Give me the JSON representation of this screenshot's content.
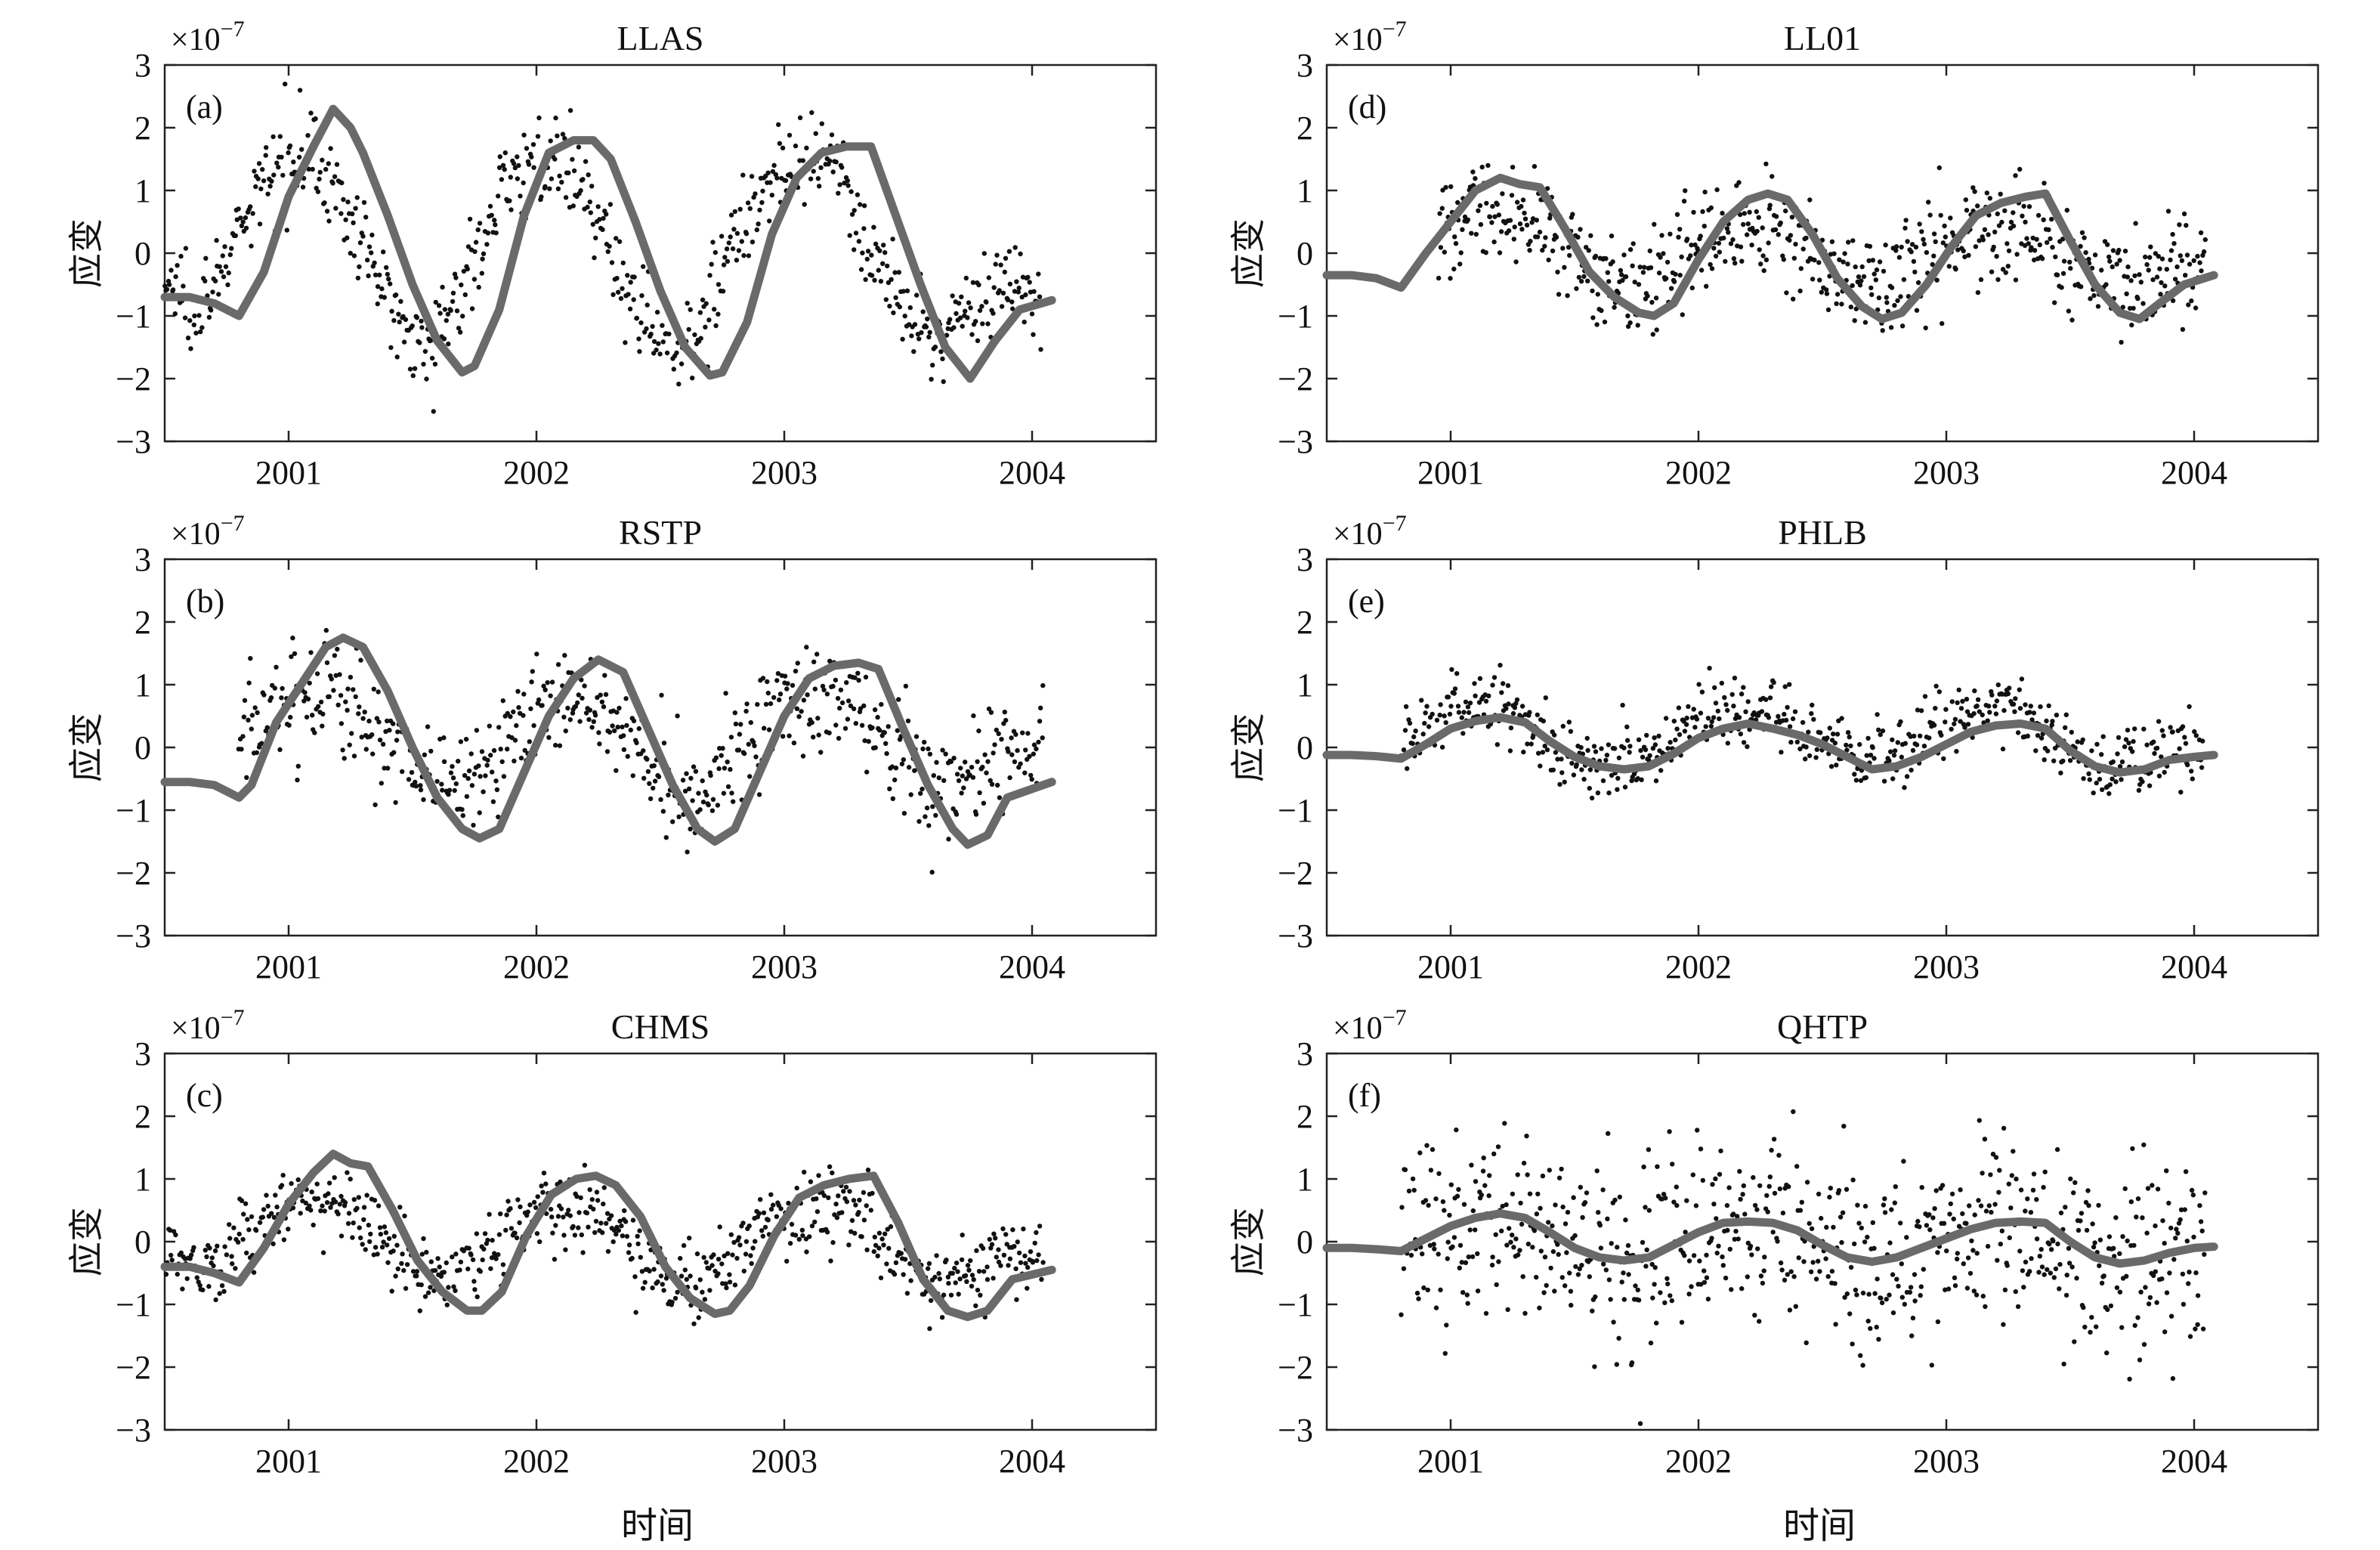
{
  "figure": {
    "xlabel": "时间",
    "ylabel": "应变",
    "scale_label_base": "×10",
    "scale_label_exp": "−7"
  },
  "chart_data": [
    {
      "type": "scatter",
      "panel": "(a)",
      "title": "LLAS",
      "xlim": [
        2000.5,
        2004.5
      ],
      "ylim": [
        -3,
        3
      ],
      "x_ticks": [
        2001,
        2002,
        2003,
        2004
      ],
      "x_tick_labels": [
        "2001",
        "2002",
        "2003",
        "2004"
      ],
      "y_ticks": [
        -3,
        -2,
        -1,
        0,
        1,
        2,
        3
      ],
      "y_tick_labels": [
        "−3",
        "−2",
        "−1",
        "0",
        "1",
        "2",
        "3"
      ],
      "grid": false,
      "series": [
        {
          "kind": "points",
          "description_values": {
            "amplitude": 1.75,
            "offset": 0.05,
            "noise": 0.35,
            "phase_lead": 0.15,
            "start": 2000.5,
            "end": 2004.05,
            "n": 700
          }
        },
        {
          "kind": "line",
          "x": [
            2000.5,
            2000.6,
            2000.7,
            2000.8,
            2000.9,
            2001.0,
            2001.1,
            2001.18,
            2001.25,
            2001.3,
            2001.4,
            2001.5,
            2001.6,
            2001.7,
            2001.75,
            2001.85,
            2001.95,
            2002.05,
            2002.15,
            2002.23,
            2002.3,
            2002.4,
            2002.5,
            2002.6,
            2002.7,
            2002.75,
            2002.85,
            2002.95,
            2003.05,
            2003.15,
            2003.25,
            2003.35,
            2003.45,
            2003.55,
            2003.65,
            2003.75,
            2003.85,
            2003.95,
            2004.08
          ],
          "y": [
            -0.7,
            -0.7,
            -0.8,
            -1.0,
            -0.3,
            0.9,
            1.7,
            2.3,
            2.0,
            1.6,
            0.6,
            -0.5,
            -1.4,
            -1.9,
            -1.8,
            -0.9,
            0.6,
            1.6,
            1.8,
            1.8,
            1.5,
            0.5,
            -0.6,
            -1.5,
            -1.95,
            -1.9,
            -1.1,
            0.3,
            1.2,
            1.6,
            1.7,
            1.7,
            0.6,
            -0.5,
            -1.5,
            -2.0,
            -1.4,
            -0.9,
            -0.75
          ]
        }
      ]
    },
    {
      "type": "scatter",
      "panel": "(b)",
      "title": "RSTP",
      "xlim": [
        2000.5,
        2004.5
      ],
      "ylim": [
        -3,
        3
      ],
      "x_ticks": [
        2001,
        2002,
        2003,
        2004
      ],
      "x_tick_labels": [
        "2001",
        "2002",
        "2003",
        "2004"
      ],
      "y_ticks": [
        -3,
        -2,
        -1,
        0,
        1,
        2,
        3
      ],
      "y_tick_labels": [
        "−3",
        "−2",
        "−1",
        "0",
        "1",
        "2",
        "3"
      ],
      "grid": false,
      "series": [
        {
          "kind": "points",
          "description_values": {
            "amplitude": 0.85,
            "offset": 0.1,
            "noise": 0.45,
            "phase_lead": 0.1,
            "start": 2000.8,
            "end": 2004.05,
            "n": 650
          }
        },
        {
          "kind": "line",
          "x": [
            2000.5,
            2000.6,
            2000.7,
            2000.8,
            2000.85,
            2000.95,
            2001.05,
            2001.15,
            2001.22,
            2001.3,
            2001.4,
            2001.5,
            2001.6,
            2001.7,
            2001.77,
            2001.85,
            2001.95,
            2002.05,
            2002.15,
            2002.25,
            2002.35,
            2002.45,
            2002.55,
            2002.65,
            2002.72,
            2002.8,
            2002.9,
            2003.0,
            2003.1,
            2003.2,
            2003.3,
            2003.38,
            2003.48,
            2003.58,
            2003.68,
            2003.74,
            2003.82,
            2003.9,
            2004.08
          ],
          "y": [
            -0.55,
            -0.55,
            -0.6,
            -0.8,
            -0.6,
            0.4,
            1.0,
            1.6,
            1.75,
            1.6,
            0.9,
            0.0,
            -0.8,
            -1.3,
            -1.45,
            -1.3,
            -0.4,
            0.5,
            1.1,
            1.4,
            1.2,
            0.3,
            -0.6,
            -1.3,
            -1.5,
            -1.3,
            -0.4,
            0.5,
            1.1,
            1.3,
            1.35,
            1.25,
            0.3,
            -0.6,
            -1.3,
            -1.55,
            -1.4,
            -0.8,
            -0.55
          ]
        }
      ]
    },
    {
      "type": "scatter",
      "panel": "(c)",
      "title": "CHMS",
      "xlim": [
        2000.5,
        2004.5
      ],
      "ylim": [
        -3,
        3
      ],
      "x_ticks": [
        2001,
        2002,
        2003,
        2004
      ],
      "x_tick_labels": [
        "2001",
        "2002",
        "2003",
        "2004"
      ],
      "y_ticks": [
        -3,
        -2,
        -1,
        0,
        1,
        2,
        3
      ],
      "y_tick_labels": [
        "−3",
        "−2",
        "−1",
        "0",
        "1",
        "2",
        "3"
      ],
      "grid": false,
      "series": [
        {
          "kind": "points",
          "description_values": {
            "amplitude": 0.75,
            "offset": 0.0,
            "noise": 0.3,
            "phase_lead": 0.1,
            "start": 2000.5,
            "end": 2004.05,
            "n": 700
          }
        },
        {
          "kind": "line",
          "x": [
            2000.5,
            2000.6,
            2000.7,
            2000.8,
            2000.9,
            2001.0,
            2001.1,
            2001.18,
            2001.25,
            2001.32,
            2001.42,
            2001.52,
            2001.62,
            2001.72,
            2001.78,
            2001.86,
            2001.96,
            2002.06,
            2002.16,
            2002.24,
            2002.32,
            2002.42,
            2002.52,
            2002.62,
            2002.72,
            2002.78,
            2002.86,
            2002.96,
            2003.06,
            2003.16,
            2003.26,
            2003.36,
            2003.46,
            2003.56,
            2003.66,
            2003.74,
            2003.82,
            2003.92,
            2004.08
          ],
          "y": [
            -0.4,
            -0.4,
            -0.5,
            -0.65,
            -0.1,
            0.6,
            1.1,
            1.4,
            1.25,
            1.2,
            0.5,
            -0.3,
            -0.8,
            -1.1,
            -1.1,
            -0.8,
            0.1,
            0.75,
            1.0,
            1.05,
            0.9,
            0.4,
            -0.4,
            -0.9,
            -1.15,
            -1.1,
            -0.7,
            0.1,
            0.7,
            0.9,
            1.0,
            1.05,
            0.3,
            -0.6,
            -1.1,
            -1.2,
            -1.1,
            -0.6,
            -0.45
          ]
        }
      ]
    },
    {
      "type": "scatter",
      "panel": "(d)",
      "title": "LL01",
      "xlim": [
        2000.5,
        2004.5
      ],
      "ylim": [
        -3,
        3
      ],
      "x_ticks": [
        2001,
        2002,
        2003,
        2004
      ],
      "x_tick_labels": [
        "2001",
        "2002",
        "2003",
        "2004"
      ],
      "y_ticks": [
        -3,
        -2,
        -1,
        0,
        1,
        2,
        3
      ],
      "y_tick_labels": [
        "−3",
        "−2",
        "−1",
        "0",
        "1",
        "2",
        "3"
      ],
      "grid": false,
      "series": [
        {
          "kind": "points",
          "description_values": {
            "amplitude": 0.6,
            "offset": 0.0,
            "noise": 0.4,
            "phase_lead": 0.05,
            "start": 2000.95,
            "end": 2004.05,
            "n": 650
          }
        },
        {
          "kind": "line",
          "x": [
            2000.5,
            2000.6,
            2000.7,
            2000.8,
            2000.9,
            2001.0,
            2001.1,
            2001.2,
            2001.28,
            2001.36,
            2001.46,
            2001.56,
            2001.66,
            2001.76,
            2001.82,
            2001.9,
            2002.0,
            2002.1,
            2002.2,
            2002.28,
            2002.36,
            2002.46,
            2002.56,
            2002.66,
            2002.74,
            2002.82,
            2002.92,
            2003.02,
            2003.12,
            2003.22,
            2003.32,
            2003.4,
            2003.5,
            2003.6,
            2003.7,
            2003.78,
            2003.86,
            2003.96,
            2004.08
          ],
          "y": [
            -0.35,
            -0.35,
            -0.4,
            -0.55,
            0.0,
            0.5,
            1.0,
            1.2,
            1.1,
            1.05,
            0.4,
            -0.3,
            -0.7,
            -0.95,
            -1.0,
            -0.8,
            -0.1,
            0.5,
            0.85,
            0.95,
            0.85,
            0.3,
            -0.4,
            -0.85,
            -1.05,
            -0.95,
            -0.5,
            0.1,
            0.6,
            0.8,
            0.9,
            0.95,
            0.2,
            -0.5,
            -0.95,
            -1.05,
            -0.8,
            -0.5,
            -0.35
          ]
        }
      ]
    },
    {
      "type": "scatter",
      "panel": "(e)",
      "title": "PHLB",
      "xlim": [
        2000.5,
        2004.5
      ],
      "ylim": [
        -3,
        3
      ],
      "x_ticks": [
        2001,
        2002,
        2003,
        2004
      ],
      "x_tick_labels": [
        "2001",
        "2002",
        "2003",
        "2004"
      ],
      "y_ticks": [
        -3,
        -2,
        -1,
        0,
        1,
        2,
        3
      ],
      "y_tick_labels": [
        "−3",
        "−2",
        "−1",
        "0",
        "1",
        "2",
        "3"
      ],
      "grid": false,
      "series": [
        {
          "kind": "points",
          "description_values": {
            "amplitude": 0.55,
            "offset": 0.15,
            "noise": 0.28,
            "phase_lead": 0.05,
            "start": 2000.8,
            "end": 2004.05,
            "n": 650
          }
        },
        {
          "kind": "line",
          "x": [
            2000.5,
            2000.6,
            2000.7,
            2000.8,
            2000.9,
            2001.0,
            2001.1,
            2001.2,
            2001.3,
            2001.4,
            2001.5,
            2001.6,
            2001.7,
            2001.8,
            2001.9,
            2002.0,
            2002.1,
            2002.2,
            2002.3,
            2002.4,
            2002.5,
            2002.6,
            2002.7,
            2002.8,
            2002.9,
            2003.0,
            2003.1,
            2003.2,
            2003.3,
            2003.4,
            2003.5,
            2003.6,
            2003.7,
            2003.8,
            2003.9,
            2004.0,
            2004.08
          ],
          "y": [
            -0.12,
            -0.12,
            -0.14,
            -0.18,
            0.05,
            0.3,
            0.42,
            0.48,
            0.4,
            0.1,
            -0.15,
            -0.3,
            -0.35,
            -0.3,
            -0.1,
            0.15,
            0.3,
            0.38,
            0.3,
            0.2,
            0.05,
            -0.15,
            -0.35,
            -0.3,
            -0.15,
            0.05,
            0.25,
            0.35,
            0.38,
            0.3,
            -0.05,
            -0.3,
            -0.4,
            -0.35,
            -0.2,
            -0.15,
            -0.12
          ]
        }
      ]
    },
    {
      "type": "scatter",
      "panel": "(f)",
      "title": "QHTP",
      "xlim": [
        2000.5,
        2004.5
      ],
      "ylim": [
        -3,
        3
      ],
      "x_ticks": [
        2001,
        2002,
        2003,
        2004
      ],
      "x_tick_labels": [
        "2001",
        "2002",
        "2003",
        "2004"
      ],
      "y_ticks": [
        -3,
        -2,
        -1,
        0,
        1,
        2,
        3
      ],
      "y_tick_labels": [
        "−3",
        "−2",
        "−1",
        "0",
        "1",
        "2",
        "3"
      ],
      "grid": false,
      "series": [
        {
          "kind": "points",
          "description_values": {
            "amplitude": 0.45,
            "offset": 0.0,
            "noise": 0.75,
            "phase_lead": 0.05,
            "start": 2000.8,
            "end": 2004.05,
            "n": 700
          }
        },
        {
          "kind": "line",
          "x": [
            2000.5,
            2000.6,
            2000.7,
            2000.8,
            2000.9,
            2001.0,
            2001.1,
            2001.2,
            2001.3,
            2001.4,
            2001.5,
            2001.6,
            2001.7,
            2001.8,
            2001.9,
            2002.0,
            2002.1,
            2002.2,
            2002.3,
            2002.4,
            2002.5,
            2002.6,
            2002.7,
            2002.8,
            2002.9,
            2003.0,
            2003.1,
            2003.2,
            2003.3,
            2003.4,
            2003.5,
            2003.6,
            2003.7,
            2003.8,
            2003.9,
            2004.0,
            2004.08
          ],
          "y": [
            -0.1,
            -0.1,
            -0.12,
            -0.15,
            0.05,
            0.25,
            0.38,
            0.45,
            0.38,
            0.15,
            -0.1,
            -0.25,
            -0.3,
            -0.25,
            -0.05,
            0.15,
            0.3,
            0.32,
            0.3,
            0.18,
            -0.05,
            -0.25,
            -0.32,
            -0.25,
            -0.1,
            0.05,
            0.2,
            0.3,
            0.32,
            0.3,
            0.0,
            -0.25,
            -0.35,
            -0.3,
            -0.18,
            -0.1,
            -0.08
          ]
        }
      ]
    }
  ]
}
